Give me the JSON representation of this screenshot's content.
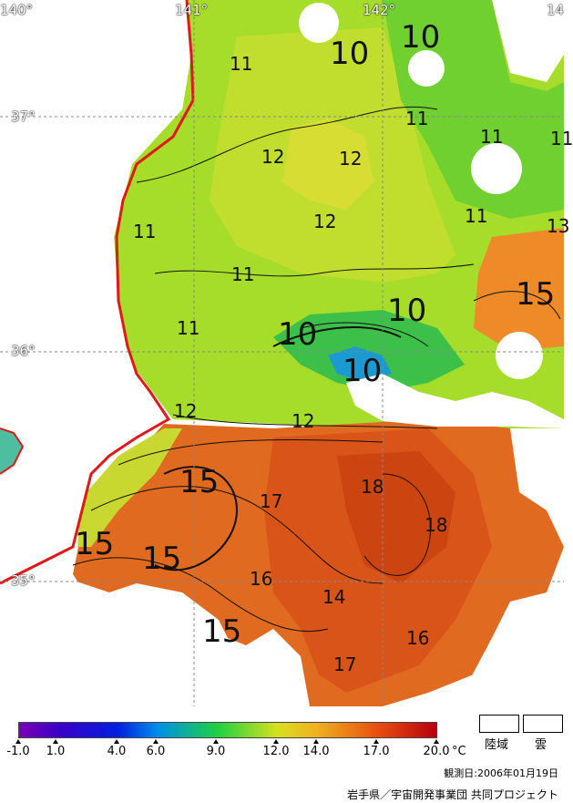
{
  "map": {
    "longitude_labels": [
      "140°",
      "141°",
      "142°",
      "14"
    ],
    "latitude_labels": [
      "37°",
      "36°",
      "35°"
    ],
    "isotherm_labels": [
      {
        "id": "a",
        "text": "10"
      },
      {
        "id": "b",
        "text": "10"
      },
      {
        "id": "c",
        "text": "11"
      },
      {
        "id": "d",
        "text": "12"
      },
      {
        "id": "e",
        "text": "12"
      },
      {
        "id": "f",
        "text": "11"
      },
      {
        "id": "g",
        "text": "11"
      },
      {
        "id": "h",
        "text": "11"
      },
      {
        "id": "i",
        "text": "13"
      },
      {
        "id": "j",
        "text": "12"
      },
      {
        "id": "k",
        "text": "11"
      },
      {
        "id": "l",
        "text": "11"
      },
      {
        "id": "m",
        "text": "15"
      },
      {
        "id": "n",
        "text": "10"
      },
      {
        "id": "o",
        "text": "10"
      },
      {
        "id": "p",
        "text": "11"
      },
      {
        "id": "q",
        "text": "10"
      },
      {
        "id": "r",
        "text": "12"
      },
      {
        "id": "s",
        "text": "12"
      },
      {
        "id": "t",
        "text": "15"
      },
      {
        "id": "u",
        "text": "17"
      },
      {
        "id": "v",
        "text": "18"
      },
      {
        "id": "w",
        "text": "18"
      },
      {
        "id": "x",
        "text": "15"
      },
      {
        "id": "y",
        "text": "15"
      },
      {
        "id": "z",
        "text": "16"
      },
      {
        "id": "aa",
        "text": "14"
      },
      {
        "id": "ab",
        "text": "15"
      },
      {
        "id": "ac",
        "text": "16"
      },
      {
        "id": "ad",
        "text": "17"
      },
      {
        "id": "ae",
        "text": "11"
      }
    ]
  },
  "legend": {
    "colorbar_stops": [
      {
        "value": -1.0,
        "color": "#7a00b4"
      },
      {
        "value": 1.0,
        "color": "#3a00c8"
      },
      {
        "value": 4.0,
        "color": "#0020e0"
      },
      {
        "value": 6.0,
        "color": "#0090e8"
      },
      {
        "value": 9.0,
        "color": "#20d040"
      },
      {
        "value": 12.0,
        "color": "#d8e020"
      },
      {
        "value": 14.0,
        "color": "#f0b020"
      },
      {
        "value": 17.0,
        "color": "#e85010"
      },
      {
        "value": 20.0,
        "color": "#b80010"
      }
    ],
    "tick_labels": [
      "-1.0",
      "1.0",
      "4.0",
      "6.0",
      "9.0",
      "12.0",
      "14.0",
      "17.0",
      "20.0"
    ],
    "unit": "°C",
    "land_label": "陸域",
    "cloud_label": "雲"
  },
  "footer": {
    "observation_date": "観測日:2006年01月19日",
    "credit": "岩手県／宇宙開発事業団 共同プロジェクト"
  }
}
